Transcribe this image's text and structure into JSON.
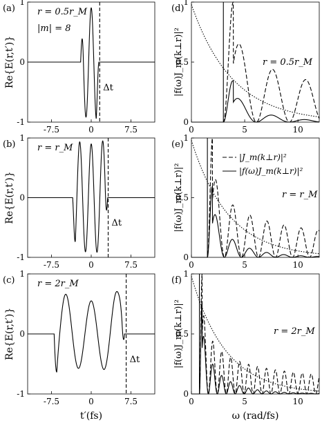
{
  "chart_data": [
    {
      "panel": "(a)",
      "type": "line",
      "xlim": [
        -12,
        12
      ],
      "ylim": [
        -1,
        1
      ],
      "xticks": [
        "-7.5",
        "0",
        "7.5"
      ],
      "yticks": [
        "-1",
        "0",
        "1"
      ],
      "ylabel": "Re{E(r,t′)}",
      "xlabel": "",
      "annotations": [
        "r = 0.5r_M",
        "|m| = 8",
        "Δt"
      ],
      "series": [
        {
          "style": "solid",
          "x_range": [
            -12,
            12
          ],
          "envelope_ratio": 0.5,
          "carrier_period_fs": 1.9
        }
      ],
      "marker_dashed_x": 1.6
    },
    {
      "panel": "(b)",
      "type": "line",
      "xlim": [
        -12,
        12
      ],
      "ylim": [
        -1,
        1
      ],
      "xticks": [
        "-7.5",
        "0",
        "7.5"
      ],
      "yticks": [
        "-1",
        "0",
        "1"
      ],
      "ylabel": "Re{E(r,t′)}",
      "xlabel": "",
      "annotations": [
        "r = r_M",
        "Δt"
      ],
      "series": [
        {
          "style": "solid",
          "x_range": [
            -12,
            12
          ],
          "envelope_ratio": 1,
          "carrier_period_fs": 2.1
        }
      ],
      "marker_dashed_x": 3.2
    },
    {
      "panel": "(c)",
      "type": "line",
      "xlim": [
        -12,
        12
      ],
      "ylim": [
        -1,
        1
      ],
      "xticks": [
        "-7.5",
        "0",
        "7.5"
      ],
      "yticks": [
        "-1",
        "0",
        "1"
      ],
      "ylabel": "Re{E(r,t′)}",
      "xlabel": "t′(fs)",
      "annotations": [
        "r = 2r_M",
        "Δt"
      ],
      "series": [
        {
          "style": "solid",
          "x_range": [
            -12,
            12
          ],
          "envelope_ratio": 2,
          "carrier_period_fs": 4.8
        }
      ],
      "marker_dashed_x": 6.6
    },
    {
      "panel": "(d)",
      "type": "line",
      "xlim": [
        0,
        12
      ],
      "ylim": [
        0,
        1
      ],
      "xticks": [
        "0",
        "5",
        "10"
      ],
      "yticks": [
        "0",
        "0.5",
        "1"
      ],
      "ylabel": "|f(ω)J_m(k⊥r)|²",
      "xlabel": "",
      "annotations": [
        "r = 0.5r_M"
      ],
      "series": [
        {
          "style": "dashed",
          "description": "|J_m(k⊥r)|²",
          "first_peak": [
            3.6,
            1.0
          ],
          "zeros_start": 3.0
        },
        {
          "style": "solid",
          "description": "|f(ω)J_m(k⊥r)|²",
          "first_peak": [
            3.5,
            0.25
          ]
        },
        {
          "style": "dotted",
          "description": "f(ω) envelope",
          "points": [
            [
              0,
              0.98
            ],
            [
              2,
              0.62
            ],
            [
              4,
              0.32
            ],
            [
              6,
              0.18
            ],
            [
              8,
              0.1
            ],
            [
              10,
              0.06
            ],
            [
              12,
              0.04
            ]
          ]
        }
      ],
      "marker_solid_x": 3.0
    },
    {
      "panel": "(e)",
      "type": "line",
      "xlim": [
        0,
        12
      ],
      "ylim": [
        0,
        1
      ],
      "xticks": [
        "0",
        "5",
        "10"
      ],
      "yticks": [
        "0",
        "0.5",
        "1"
      ],
      "ylabel": "|f(ω)J_m(k⊥r)|²",
      "xlabel": "",
      "legend": [
        "|J_m(k⊥r)|²",
        "|f(ω)J_m(k⊥r)|²"
      ],
      "annotations": [
        "r = r_M"
      ],
      "series": [
        {
          "style": "dashed",
          "name": "|J_m(k⊥r)|²",
          "first_peak": [
            1.8,
            1.0
          ]
        },
        {
          "style": "solid",
          "name": "|f(ω)J_m(k⊥r)|²",
          "first_peak": [
            1.8,
            0.5
          ]
        },
        {
          "style": "dotted",
          "description": "f(ω) envelope",
          "points": [
            [
              0,
              0.98
            ],
            [
              2,
              0.55
            ],
            [
              4,
              0.3
            ],
            [
              6,
              0.16
            ],
            [
              8,
              0.09
            ],
            [
              10,
              0.05
            ],
            [
              12,
              0.03
            ]
          ]
        }
      ],
      "marker_solid_x": 1.5
    },
    {
      "panel": "(f)",
      "type": "line",
      "xlim": [
        0,
        12
      ],
      "ylim": [
        0,
        1
      ],
      "xticks": [
        "0",
        "5",
        "10"
      ],
      "yticks": [
        "0",
        "0.5",
        "1"
      ],
      "ylabel": "|f(ω)J_m(k⊥r)|²",
      "xlabel": "ω (rad/fs)",
      "annotations": [
        "r = 2r_M"
      ],
      "series": [
        {
          "style": "dashed",
          "description": "|J_m(k⊥r)|²",
          "first_peak": [
            0.9,
            1.0
          ]
        },
        {
          "style": "solid",
          "description": "|f(ω)J_m(k⊥r)|²",
          "first_peak": [
            0.9,
            0.72
          ]
        },
        {
          "style": "dotted",
          "description": "f(ω) envelope",
          "points": [
            [
              0,
              0.98
            ],
            [
              2,
              0.58
            ],
            [
              4,
              0.3
            ],
            [
              6,
              0.15
            ],
            [
              8,
              0.08
            ],
            [
              10,
              0.05
            ],
            [
              12,
              0.03
            ]
          ]
        }
      ],
      "marker_solid_x": 0.75
    }
  ]
}
